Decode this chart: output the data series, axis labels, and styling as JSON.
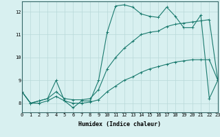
{
  "xlabel": "Humidex (Indice chaleur)",
  "x": [
    0,
    1,
    2,
    3,
    4,
    5,
    6,
    7,
    8,
    9,
    10,
    11,
    12,
    13,
    14,
    15,
    16,
    17,
    18,
    19,
    20,
    21,
    22,
    23
  ],
  "line1": [
    8.5,
    8.0,
    8.1,
    8.2,
    9.0,
    8.1,
    7.8,
    8.1,
    8.1,
    9.0,
    11.1,
    12.25,
    12.3,
    12.2,
    11.9,
    11.8,
    11.75,
    12.2,
    11.8,
    11.3,
    11.3,
    11.85,
    8.2,
    9.0
  ],
  "line2": [
    8.5,
    8.0,
    8.1,
    8.2,
    8.5,
    8.2,
    8.15,
    8.15,
    8.2,
    8.6,
    9.5,
    10.0,
    10.4,
    10.7,
    11.0,
    11.1,
    11.15,
    11.35,
    11.45,
    11.5,
    11.55,
    11.6,
    11.65,
    9.0
  ],
  "line3": [
    8.5,
    8.0,
    8.0,
    8.1,
    8.3,
    8.1,
    8.0,
    8.0,
    8.05,
    8.15,
    8.5,
    8.75,
    9.0,
    9.15,
    9.35,
    9.5,
    9.6,
    9.7,
    9.8,
    9.85,
    9.9,
    9.9,
    9.9,
    9.0
  ],
  "line_color": "#1a7a6e",
  "bg_color": "#d8f0f0",
  "grid_color": "#b8d8d8",
  "xlim": [
    0,
    23
  ],
  "ylim": [
    7.6,
    12.45
  ],
  "yticks": [
    8,
    9,
    10,
    11,
    12
  ],
  "xticks": [
    0,
    1,
    2,
    3,
    4,
    5,
    6,
    7,
    8,
    9,
    10,
    11,
    12,
    13,
    14,
    15,
    16,
    17,
    18,
    19,
    20,
    21,
    22,
    23
  ],
  "tick_fontsize": 5.0,
  "xlabel_fontsize": 6.0
}
